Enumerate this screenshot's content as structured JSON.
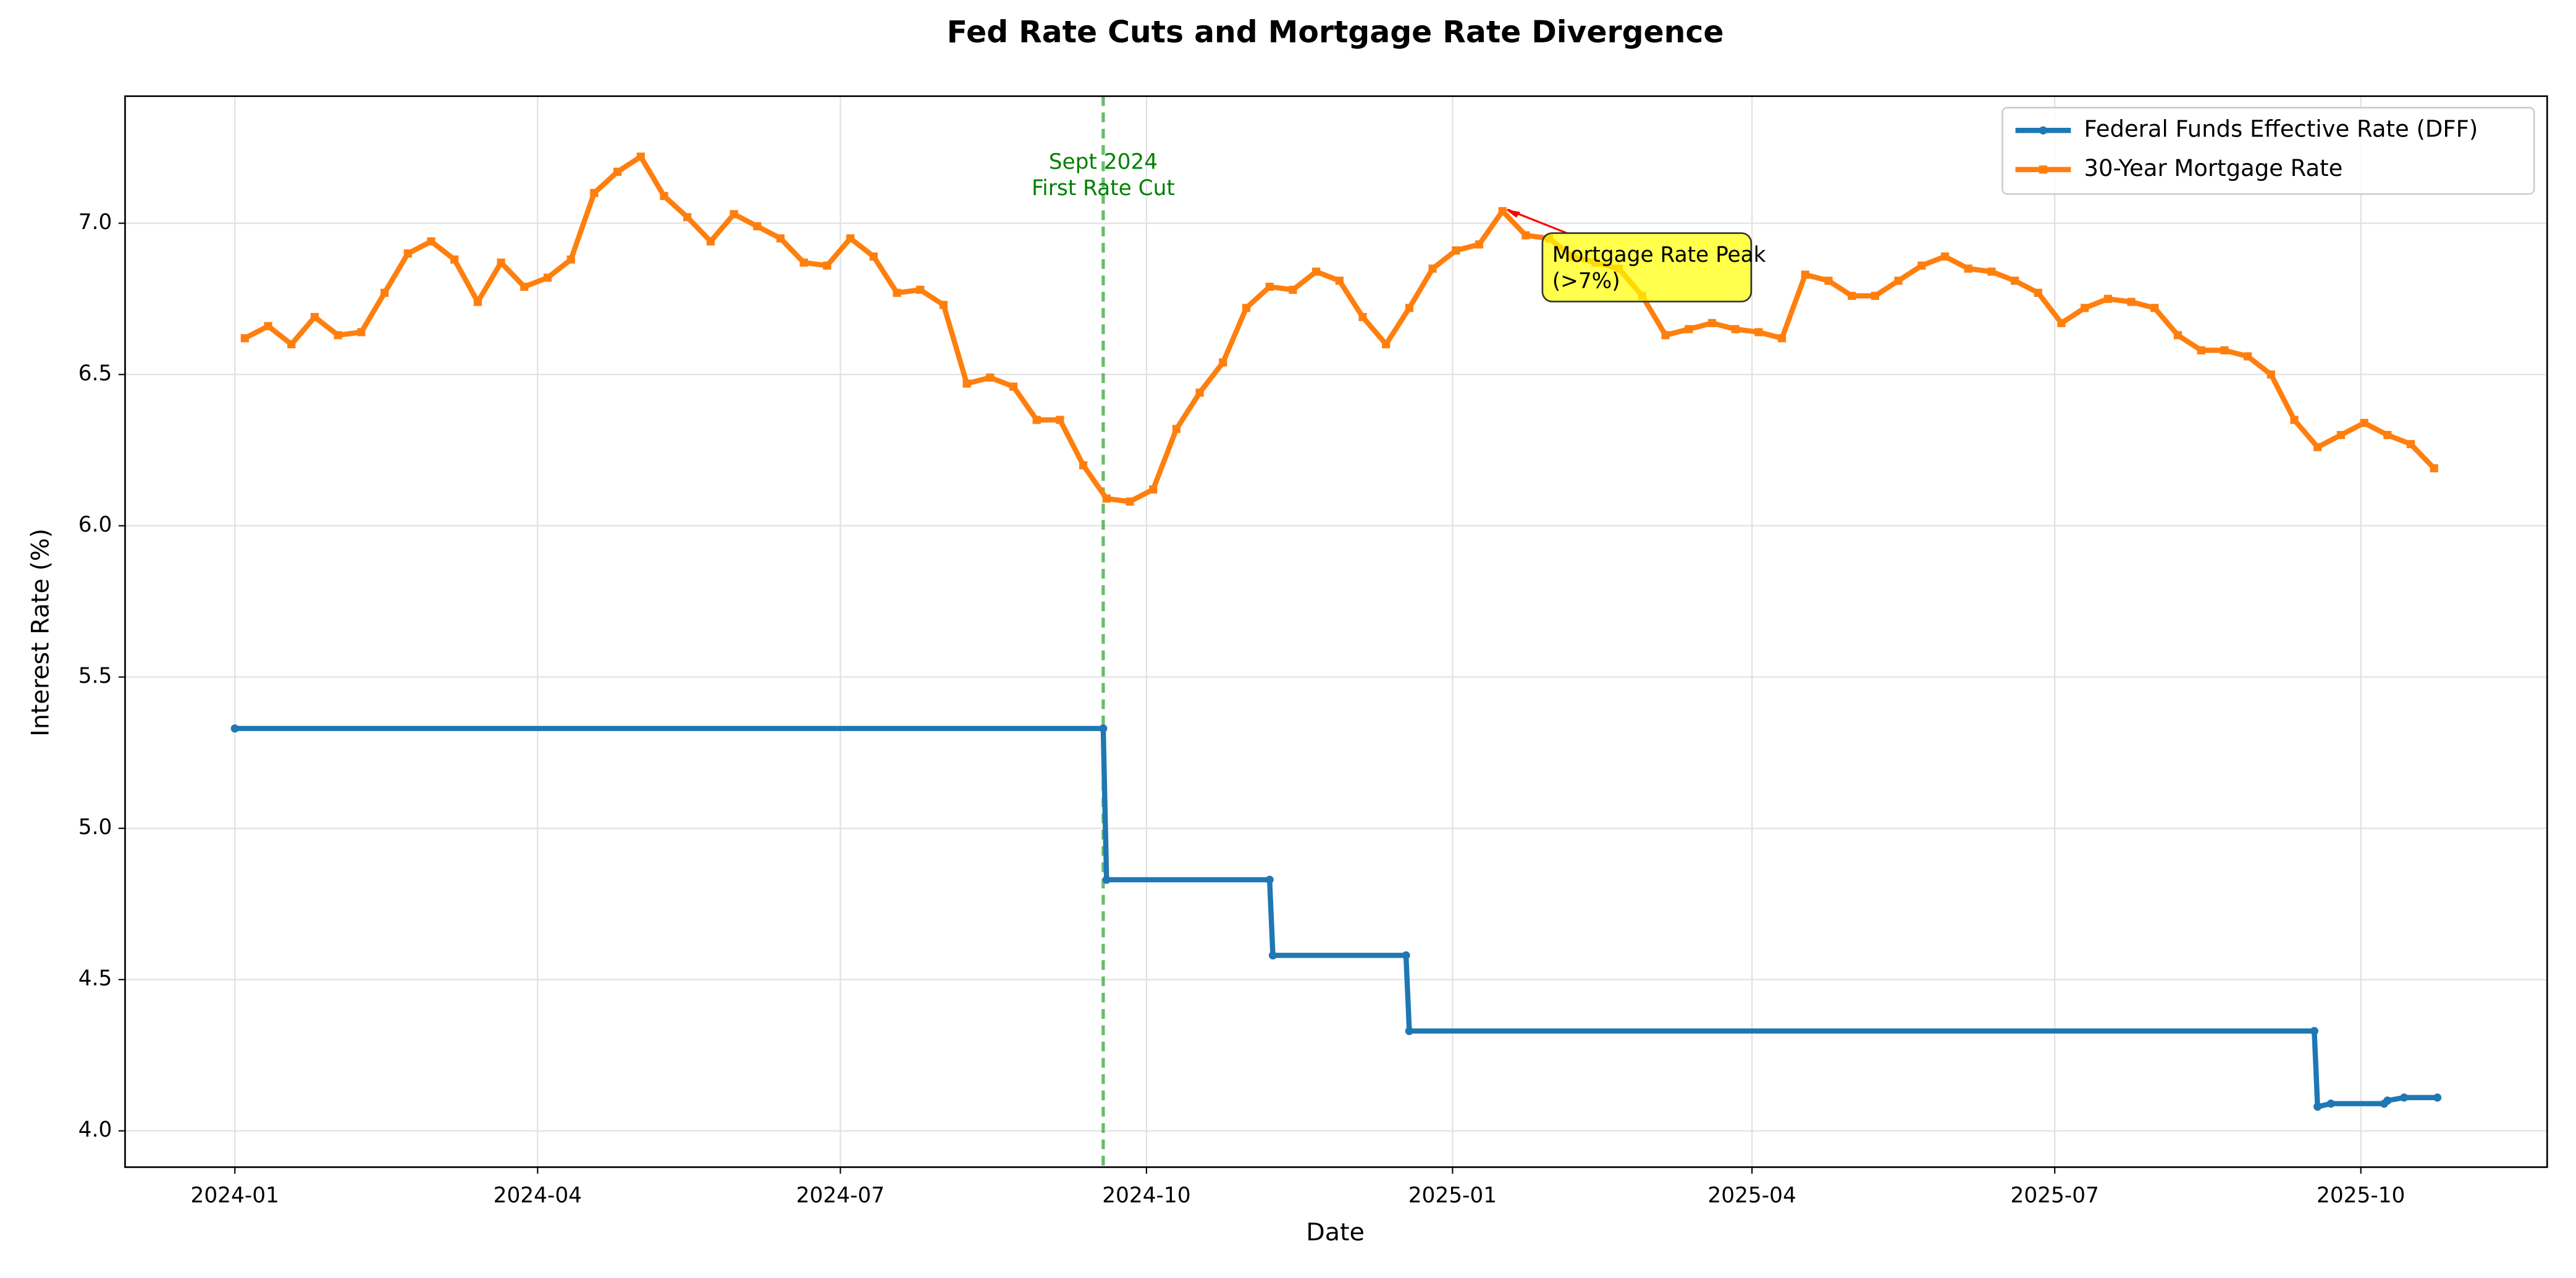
{
  "chart_data": {
    "type": "line",
    "title": "Fed Rate Cuts and Mortgage Rate Divergence",
    "xlabel": "Date",
    "ylabel": "Interest Rate (%)",
    "xlim": [
      "2023-11-29",
      "2025-11-26"
    ],
    "xticks": [
      "2024-01",
      "2024-04",
      "2024-07",
      "2024-10",
      "2025-01",
      "2025-04",
      "2025-07",
      "2025-10"
    ],
    "ylim": [
      3.88,
      7.42
    ],
    "yticks": [
      {
        "value": 4,
        "label": "4.0"
      },
      4.5,
      {
        "value": 5,
        "label": "5.0"
      },
      5.5,
      {
        "value": 6,
        "label": "6.0"
      },
      6.5,
      {
        "value": 7,
        "label": "7.0"
      }
    ],
    "grid": true,
    "legend": "upper right",
    "series": [
      {
        "name": "Federal Funds Effective Rate (DFF)",
        "color": "#1f77b4",
        "marker": "circle",
        "x": [
          "2024-01-01",
          "2024-09-18",
          "2024-09-19",
          "2024-11-07",
          "2024-11-08",
          "2024-12-18",
          "2024-12-19",
          "2025-09-17",
          "2025-09-18",
          "2025-09-22",
          "2025-10-08",
          "2025-10-09",
          "2025-10-14",
          "2025-10-24"
        ],
        "values": [
          5.33,
          5.33,
          4.83,
          4.83,
          4.58,
          4.58,
          4.33,
          4.33,
          4.08,
          4.09,
          4.09,
          4.1,
          4.11,
          4.11
        ]
      },
      {
        "name": "30-Year Mortgage Rate",
        "color": "#ff7f0e",
        "marker": "square",
        "x": [
          "2024-01-04",
          "2024-01-11",
          "2024-01-18",
          "2024-01-25",
          "2024-02-01",
          "2024-02-08",
          "2024-02-15",
          "2024-02-22",
          "2024-02-29",
          "2024-03-07",
          "2024-03-14",
          "2024-03-21",
          "2024-03-28",
          "2024-04-04",
          "2024-04-11",
          "2024-04-18",
          "2024-04-25",
          "2024-05-02",
          "2024-05-09",
          "2024-05-16",
          "2024-05-23",
          "2024-05-30",
          "2024-06-06",
          "2024-06-13",
          "2024-06-20",
          "2024-06-27",
          "2024-07-04",
          "2024-07-11",
          "2024-07-18",
          "2024-07-25",
          "2024-08-01",
          "2024-08-08",
          "2024-08-15",
          "2024-08-22",
          "2024-08-29",
          "2024-09-05",
          "2024-09-12",
          "2024-09-19",
          "2024-09-26",
          "2024-10-03",
          "2024-10-10",
          "2024-10-17",
          "2024-10-24",
          "2024-10-31",
          "2024-11-07",
          "2024-11-14",
          "2024-11-21",
          "2024-11-28",
          "2024-12-05",
          "2024-12-12",
          "2024-12-19",
          "2024-12-26",
          "2025-01-02",
          "2025-01-09",
          "2025-01-16",
          "2025-01-23",
          "2025-01-30",
          "2025-02-06",
          "2025-02-13",
          "2025-02-20",
          "2025-02-27",
          "2025-03-06",
          "2025-03-13",
          "2025-03-20",
          "2025-03-27",
          "2025-04-03",
          "2025-04-10",
          "2025-04-17",
          "2025-04-24",
          "2025-05-01",
          "2025-05-08",
          "2025-05-15",
          "2025-05-22",
          "2025-05-29",
          "2025-06-05",
          "2025-06-12",
          "2025-06-19",
          "2025-06-26",
          "2025-07-03",
          "2025-07-10",
          "2025-07-17",
          "2025-07-24",
          "2025-07-31",
          "2025-08-07",
          "2025-08-14",
          "2025-08-21",
          "2025-08-28",
          "2025-09-04",
          "2025-09-11",
          "2025-09-18",
          "2025-09-25",
          "2025-10-02",
          "2025-10-09",
          "2025-10-16",
          "2025-10-23"
        ],
        "values": [
          6.62,
          6.66,
          6.6,
          6.69,
          6.63,
          6.64,
          6.77,
          6.9,
          6.94,
          6.88,
          6.74,
          6.87,
          6.79,
          6.82,
          6.88,
          7.1,
          7.17,
          7.22,
          7.09,
          7.02,
          6.94,
          7.03,
          6.99,
          6.95,
          6.87,
          6.86,
          6.95,
          6.89,
          6.77,
          6.78,
          6.73,
          6.47,
          6.49,
          6.46,
          6.35,
          6.35,
          6.2,
          6.09,
          6.08,
          6.12,
          6.32,
          6.44,
          6.54,
          6.72,
          6.79,
          6.78,
          6.84,
          6.81,
          6.69,
          6.6,
          6.72,
          6.85,
          6.91,
          6.93,
          7.04,
          6.96,
          6.95,
          6.89,
          6.87,
          6.85,
          6.76,
          6.63,
          6.65,
          6.67,
          6.65,
          6.64,
          6.62,
          6.83,
          6.81,
          6.76,
          6.76,
          6.81,
          6.86,
          6.89,
          6.85,
          6.84,
          6.81,
          6.77,
          6.67,
          6.72,
          6.75,
          6.74,
          6.72,
          6.63,
          6.58,
          6.58,
          6.56,
          6.5,
          6.35,
          6.26,
          6.3,
          6.34,
          6.3,
          6.27,
          6.19
        ]
      }
    ],
    "vline": {
      "x": "2024-09-18",
      "color": "#2ca02c",
      "text": [
        "Sept 2024",
        "First Rate Cut"
      ],
      "text_color": "#008000"
    },
    "annotation": {
      "x": "2025-01-16",
      "y": 7.04,
      "text": [
        "Mortgage Rate Peak",
        "(>7%)"
      ],
      "box_color": "#ffff00",
      "arrow_color": "#ff0000"
    }
  }
}
